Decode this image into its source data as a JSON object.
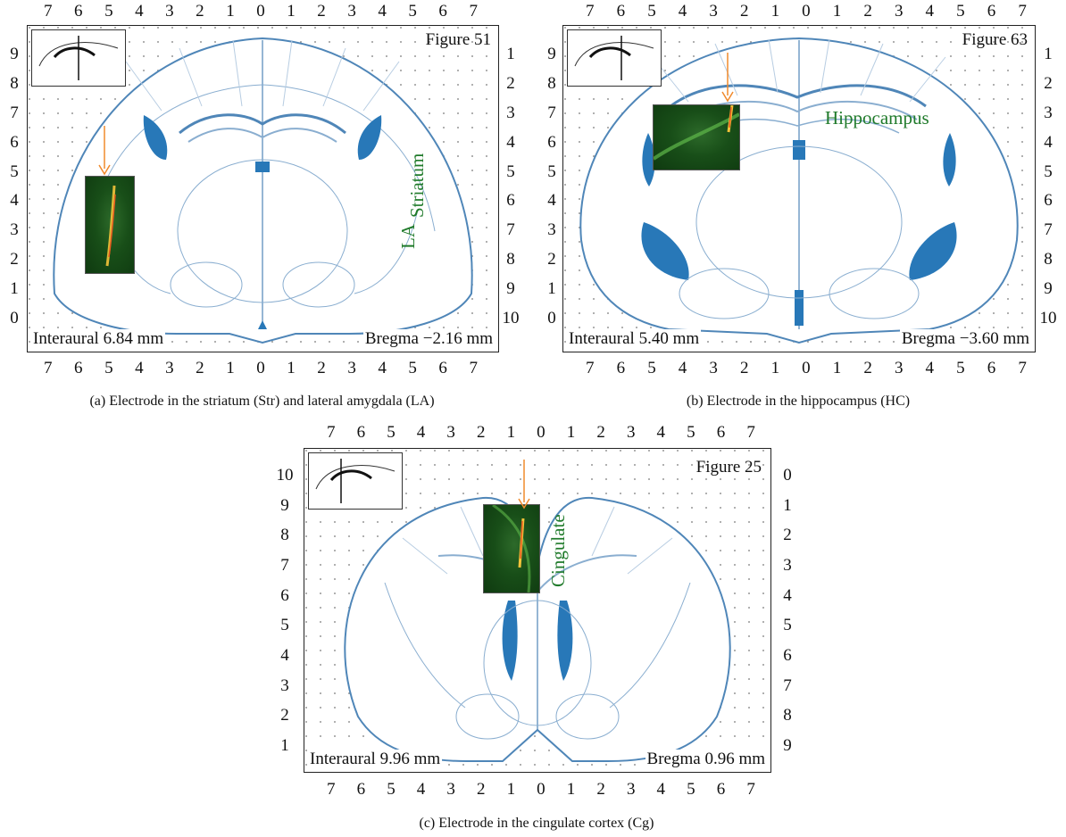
{
  "panels": {
    "a": {
      "top_ticks": [
        "7",
        "6",
        "5",
        "4",
        "3",
        "2",
        "1",
        "0",
        "1",
        "2",
        "3",
        "4",
        "5",
        "6",
        "7"
      ],
      "bottom_ticks": [
        "7",
        "6",
        "5",
        "4",
        "3",
        "2",
        "1",
        "0",
        "1",
        "2",
        "3",
        "4",
        "5",
        "6",
        "7"
      ],
      "left_ticks": [
        "9",
        "8",
        "7",
        "6",
        "5",
        "4",
        "3",
        "2",
        "1",
        "0"
      ],
      "right_ticks": [
        "1",
        "2",
        "3",
        "4",
        "5",
        "6",
        "7",
        "8",
        "9",
        "10"
      ],
      "figure_label": "Figure 51",
      "interaural": "Interaural 6.84 mm",
      "bregma": "Bregma −2.16 mm",
      "region_labels": [
        "LA",
        "Striatum"
      ],
      "caption": "(a)  Electrode in the striatum (Str) and lateral amygdala (LA)"
    },
    "b": {
      "top_ticks": [
        "7",
        "6",
        "5",
        "4",
        "3",
        "2",
        "1",
        "0",
        "1",
        "2",
        "3",
        "4",
        "5",
        "6",
        "7"
      ],
      "bottom_ticks": [
        "7",
        "6",
        "5",
        "4",
        "3",
        "2",
        "1",
        "0",
        "1",
        "2",
        "3",
        "4",
        "5",
        "6",
        "7"
      ],
      "left_ticks": [
        "9",
        "8",
        "7",
        "6",
        "5",
        "4",
        "3",
        "2",
        "1",
        "0"
      ],
      "right_ticks": [
        "1",
        "2",
        "3",
        "4",
        "5",
        "6",
        "7",
        "8",
        "9",
        "10"
      ],
      "figure_label": "Figure 63",
      "interaural": "Interaural 5.40 mm",
      "bregma": "Bregma −3.60 mm",
      "region_labels": [
        "Hippocampus"
      ],
      "caption": "(b)  Electrode in the hippocampus (HC)"
    },
    "c": {
      "top_ticks": [
        "7",
        "6",
        "5",
        "4",
        "3",
        "2",
        "1",
        "0",
        "1",
        "2",
        "3",
        "4",
        "5",
        "6",
        "7"
      ],
      "bottom_ticks": [
        "7",
        "6",
        "5",
        "4",
        "3",
        "2",
        "1",
        "0",
        "1",
        "2",
        "3",
        "4",
        "5",
        "6",
        "7"
      ],
      "left_ticks": [
        "10",
        "9",
        "8",
        "7",
        "6",
        "5",
        "4",
        "3",
        "2",
        "1"
      ],
      "right_ticks": [
        "0",
        "1",
        "2",
        "3",
        "4",
        "5",
        "6",
        "7",
        "8",
        "9"
      ],
      "figure_label": "Figure 25",
      "interaural": "Interaural 9.96 mm",
      "bregma": "Bregma 0.96 mm",
      "region_labels": [
        "Cingulate"
      ],
      "caption": "(c)  Electrode in the cingulate cortex (Cg)"
    }
  },
  "colors": {
    "atlas_line": "#4f86b8",
    "highlight": "#2878b8",
    "arrow": "#f08a2c",
    "label_green": "#1f7a2a"
  }
}
